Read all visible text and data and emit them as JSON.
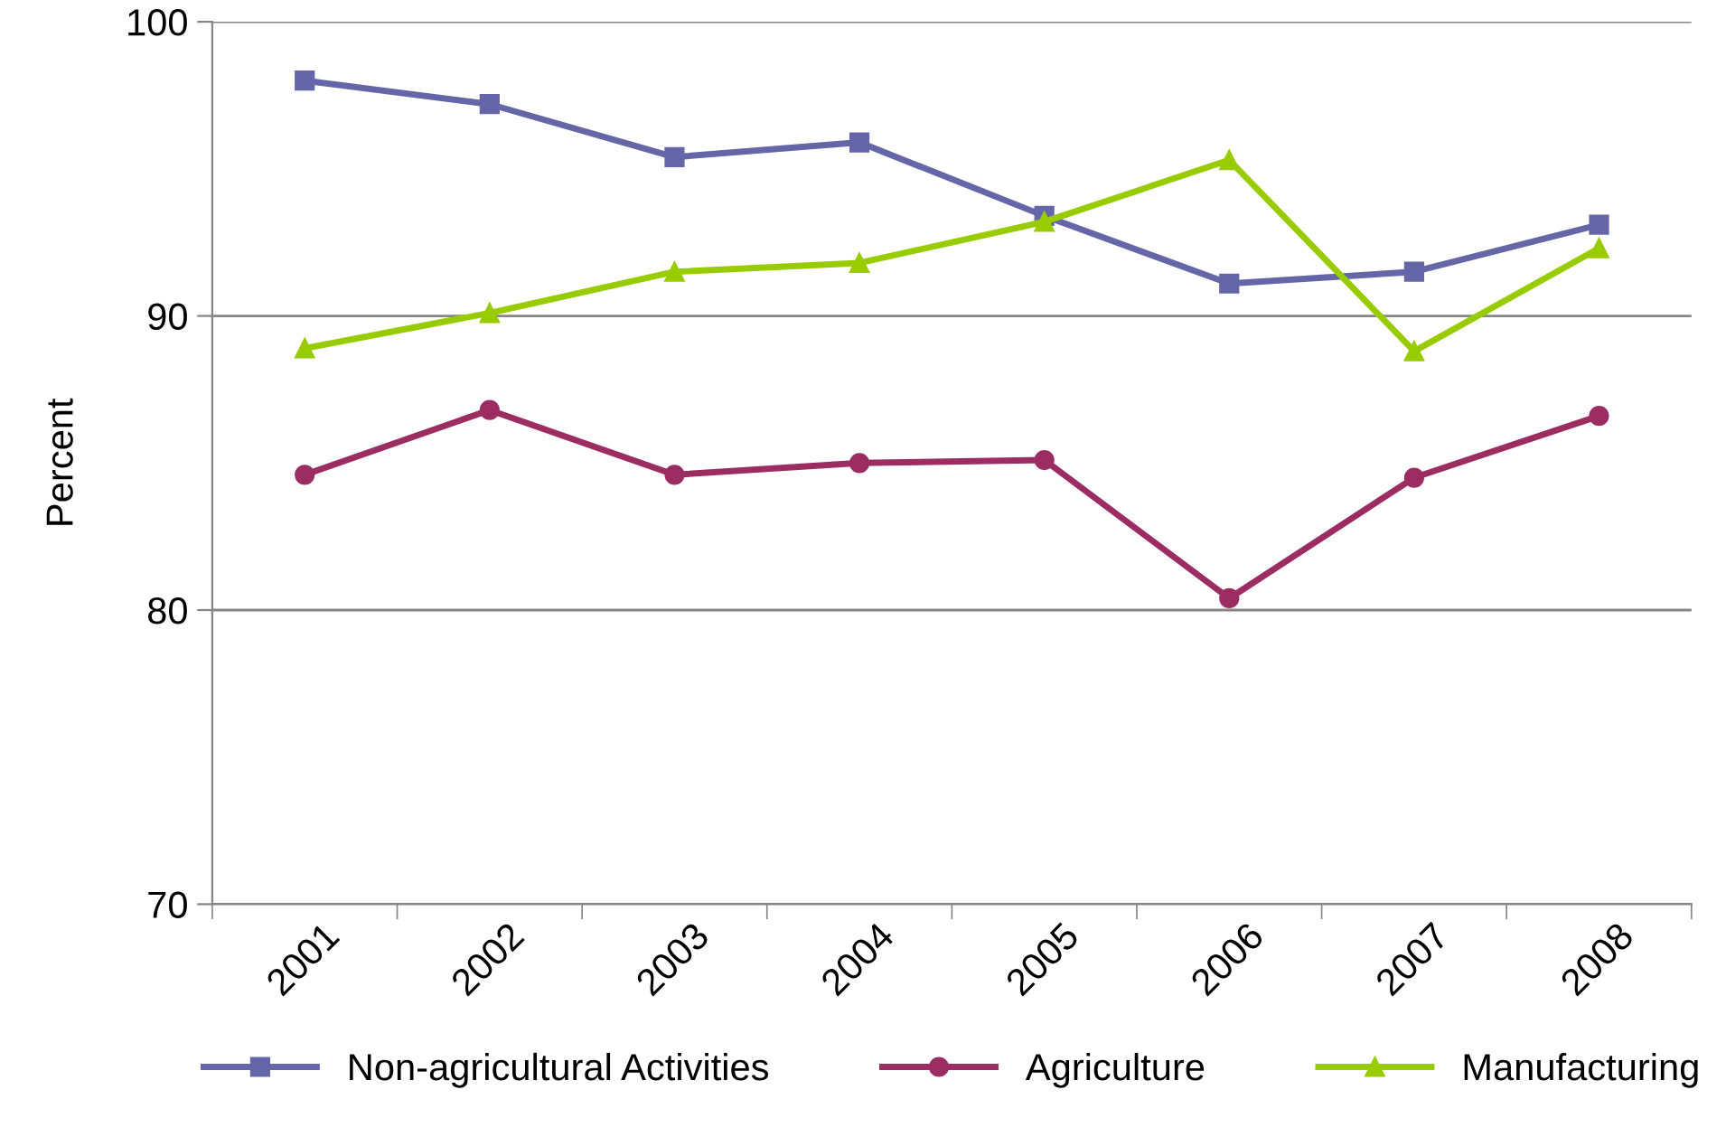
{
  "chart_data": {
    "type": "line",
    "ylabel": "Percent",
    "categories": [
      "2001",
      "2002",
      "2003",
      "2004",
      "2005",
      "2006",
      "2007",
      "2008"
    ],
    "series": [
      {
        "name": "Non-agricultural Activities",
        "color": "#6566a8",
        "marker": "square",
        "values": [
          98.0,
          97.2,
          95.4,
          95.9,
          93.4,
          91.1,
          91.5,
          93.1
        ]
      },
      {
        "name": "Agriculture",
        "color": "#9b2d63",
        "marker": "circle",
        "values": [
          84.6,
          86.8,
          84.6,
          85.0,
          85.1,
          80.4,
          84.5,
          86.6
        ]
      },
      {
        "name": "Manufacturing",
        "color": "#99cc00",
        "marker": "triangle",
        "values": [
          88.9,
          90.1,
          91.5,
          91.8,
          93.2,
          95.3,
          88.8,
          92.3
        ]
      }
    ],
    "ylim": [
      70,
      100
    ],
    "yticks": [
      70,
      80,
      90,
      100
    ],
    "grid": "y",
    "legend": "bottom",
    "line_style": "solid"
  }
}
